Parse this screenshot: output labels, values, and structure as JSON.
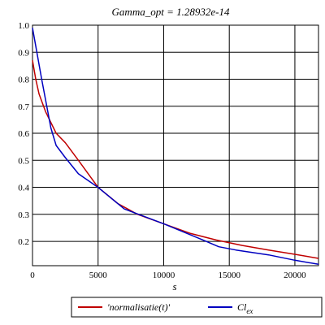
{
  "chart_data": {
    "type": "line",
    "title": "Gamma_opt = 1.28932e-14",
    "xlabel": "s",
    "ylabel": "",
    "xlim": [
      0,
      21800
    ],
    "ylim": [
      0.11,
      1.0
    ],
    "xticks": [
      0,
      5000,
      10000,
      15000,
      20000
    ],
    "xtick_labels": [
      "0",
      "5000",
      "10000",
      "15000",
      "20000"
    ],
    "yticks": [
      0.2,
      0.3,
      0.4,
      0.5,
      0.6,
      0.7,
      0.8,
      0.9,
      1.0
    ],
    "ytick_labels": [
      "0.2",
      "0.3",
      "0.4",
      "0.5",
      "0.6",
      "0.7",
      "0.8",
      "0.9",
      "1.0"
    ],
    "grid": true,
    "legend_position": "bottom",
    "series": [
      {
        "name": "'normalisatie(t)'",
        "legend_main": "'normalisatie(t)'",
        "legend_sub": "",
        "color": "#c00000",
        "x": [
          0,
          250,
          500,
          1000,
          1800,
          2500,
          3500,
          5000,
          6500,
          8000,
          10000,
          12000,
          14000,
          16000,
          18000,
          20000,
          21800
        ],
        "y": [
          0.87,
          0.8,
          0.745,
          0.68,
          0.6,
          0.565,
          0.5,
          0.4,
          0.34,
          0.3,
          0.265,
          0.23,
          0.205,
          0.185,
          0.168,
          0.152,
          0.137
        ]
      },
      {
        "name": "Cl_ex",
        "legend_main": "Cl",
        "legend_sub": "ex",
        "color": "#0000c0",
        "x": [
          0,
          700,
          1400,
          1800,
          2500,
          3500,
          5000,
          7000,
          10000,
          13000,
          14200,
          15500,
          18000,
          20000,
          21800
        ],
        "y": [
          0.99,
          0.8,
          0.62,
          0.555,
          0.51,
          0.45,
          0.4,
          0.32,
          0.265,
          0.205,
          0.18,
          0.168,
          0.15,
          0.13,
          0.115
        ]
      }
    ]
  }
}
